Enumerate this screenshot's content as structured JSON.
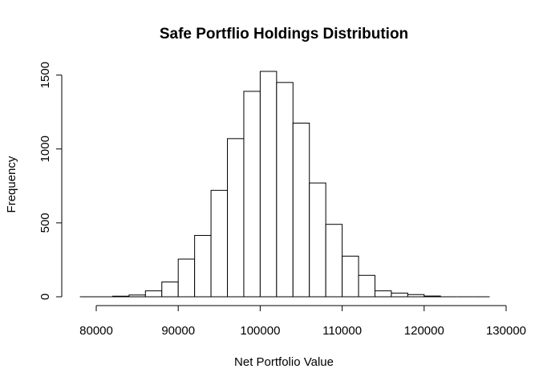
{
  "chart_data": {
    "type": "histogram",
    "title": "Safe Portflio Holdings Distribution",
    "xlabel": "Net Portfolio Value",
    "ylabel": "Frequency",
    "bin_edges": [
      78000,
      80000,
      82000,
      84000,
      86000,
      88000,
      90000,
      92000,
      94000,
      96000,
      98000,
      100000,
      102000,
      104000,
      106000,
      108000,
      110000,
      112000,
      114000,
      116000,
      118000,
      120000,
      122000,
      124000,
      126000,
      128000
    ],
    "values": [
      0,
      0,
      4,
      12,
      40,
      100,
      255,
      415,
      720,
      1070,
      1390,
      1525,
      1450,
      1175,
      770,
      490,
      275,
      145,
      40,
      25,
      15,
      5,
      0,
      0,
      0
    ],
    "x_ticks": [
      80000,
      90000,
      100000,
      110000,
      120000,
      130000
    ],
    "x_tick_labels": [
      "80000",
      "90000",
      "100000",
      "110000",
      "120000",
      "130000"
    ],
    "y_ticks": [
      0,
      500,
      1000,
      1500
    ],
    "y_tick_labels": [
      "0",
      "500",
      "1000",
      "1500"
    ],
    "xlim": [
      78000,
      130000
    ],
    "ylim": [
      0,
      1525
    ],
    "grid": false,
    "colors": {
      "bar_fill": "#ffffff",
      "bar_stroke": "#000000"
    }
  }
}
